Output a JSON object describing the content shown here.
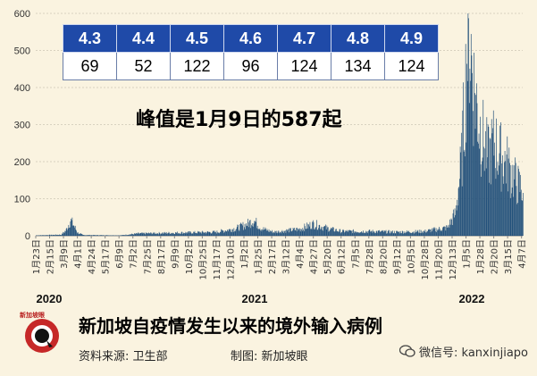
{
  "table": {
    "dates": [
      "4.3",
      "4.4",
      "4.5",
      "4.6",
      "4.7",
      "4.8",
      "4.9"
    ],
    "counts": [
      "69",
      "52",
      "122",
      "96",
      "124",
      "134",
      "124"
    ]
  },
  "annotation": "峰值是1月9日的587起",
  "footer": {
    "title": "新加坡自疫情发生以来的境外输入病例",
    "source": "资料来源:  卫生部",
    "maker": "制图:  新加坡眼",
    "wechat": "微信号: kanxinjiapo",
    "logo_text": "新加坡眼"
  },
  "colors": {
    "bar": "#1f4e79",
    "header": "#1f4aa8",
    "background": "#faf3e0",
    "logo": "#c62828"
  },
  "chart_data": {
    "type": "bar",
    "title": "",
    "xlabel": "",
    "ylabel": "",
    "ylim": [
      0,
      600
    ],
    "yticks": [
      0,
      100,
      200,
      300,
      400,
      500,
      600
    ],
    "grid": true,
    "x_range": [
      "2020-01-23",
      "2022-04-09"
    ],
    "xticks": [
      "1月23日",
      "2月15日",
      "3月9日",
      "4月1日",
      "4月24日",
      "5月17日",
      "6月9日",
      "7月2日",
      "7月25日",
      "8月17日",
      "9月9日",
      "10月2日",
      "10月25日",
      "11月17日",
      "12月10日",
      "1月2日",
      "1月25日",
      "2月17日",
      "3月12日",
      "4月4日",
      "4月27日",
      "5月20日",
      "6月12日",
      "7月5日",
      "7月28日",
      "8月20日",
      "9月12日",
      "10月5日",
      "10月28日",
      "11月20日",
      "12月13日",
      "1月5日",
      "1月28日",
      "2月20日",
      "3月15日",
      "4月7日"
    ],
    "year_labels": [
      "2020",
      "2021",
      "2022"
    ],
    "daily_series": {
      "name": "",
      "profile": [
        [
          "2020-01-23",
          1
        ],
        [
          "2020-03-05",
          3
        ],
        [
          "2020-03-13",
          15
        ],
        [
          "2020-03-20",
          42
        ],
        [
          "2020-03-25",
          30
        ],
        [
          "2020-04-01",
          8
        ],
        [
          "2020-04-10",
          2
        ],
        [
          "2020-06-10",
          1
        ],
        [
          "2020-07-10",
          6
        ],
        [
          "2020-09-09",
          8
        ],
        [
          "2020-11-17",
          10
        ],
        [
          "2020-12-20",
          20
        ],
        [
          "2021-01-05",
          30
        ],
        [
          "2021-01-18",
          42
        ],
        [
          "2021-01-30",
          20
        ],
        [
          "2021-02-20",
          10
        ],
        [
          "2021-04-04",
          18
        ],
        [
          "2021-04-27",
          32
        ],
        [
          "2021-05-20",
          20
        ],
        [
          "2021-06-12",
          12
        ],
        [
          "2021-07-28",
          12
        ],
        [
          "2021-09-12",
          10
        ],
        [
          "2021-10-28",
          12
        ],
        [
          "2021-11-20",
          18
        ],
        [
          "2021-12-05",
          22
        ],
        [
          "2021-12-18",
          60
        ],
        [
          "2021-12-28",
          200
        ],
        [
          "2022-01-05",
          440
        ],
        [
          "2022-01-09",
          587
        ],
        [
          "2022-01-16",
          420
        ],
        [
          "2022-01-28",
          290
        ],
        [
          "2022-02-10",
          210
        ],
        [
          "2022-02-20",
          250
        ],
        [
          "2022-03-01",
          220
        ],
        [
          "2022-03-15",
          190
        ],
        [
          "2022-03-30",
          140
        ],
        [
          "2022-04-09",
          124
        ]
      ],
      "peak": {
        "date": "2022-01-09",
        "value": 587
      }
    }
  }
}
